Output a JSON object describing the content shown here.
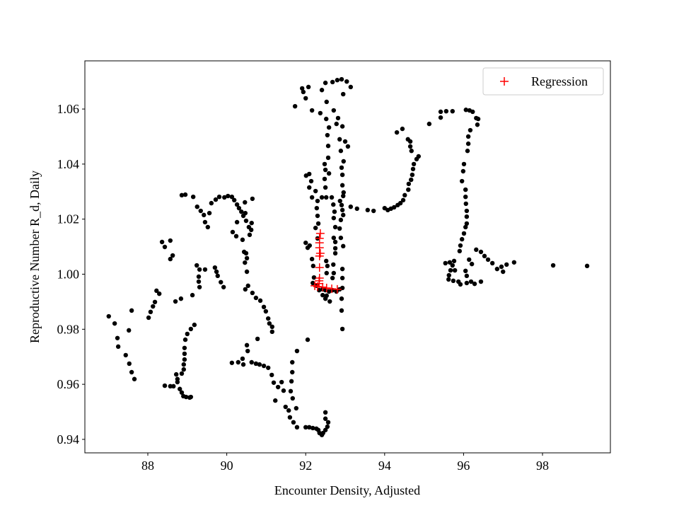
{
  "chart_data": {
    "type": "scatter",
    "x_label": "Encounter Density, Adjusted",
    "y_label": "Reproductive Number R_d, Daily",
    "xlim": [
      86.405,
      99.72
    ],
    "ylim": [
      0.9351,
      1.0775
    ],
    "xticks": [
      88,
      90,
      92,
      94,
      96,
      98
    ],
    "yticks": [
      0.94,
      0.96,
      0.98,
      {
        "value": 1,
        "label": "1.00"
      },
      1.02,
      1.04,
      1.06
    ],
    "grid": false,
    "legend": "upper right",
    "series": [
      {
        "color": "#000000",
        "marker": "o",
        "x": [
          87.01,
          87.16,
          87.23,
          87.25,
          87.44,
          87.53,
          87.59,
          87.66,
          87.52,
          87.59,
          88.02,
          88.07,
          88.13,
          88.18,
          88.22,
          88.29,
          88.36,
          88.43,
          88.57,
          88.63,
          88.57,
          88.7,
          88.84,
          89.24,
          89.31,
          89.29,
          89.29,
          89.31,
          89.45,
          89.7,
          89.74,
          89.77,
          89.85,
          89.92,
          89.13,
          88.86,
          88.95,
          89.15,
          89.25,
          89.34,
          89.42,
          89.45,
          89.52,
          89.56,
          89.61,
          89.72,
          89.81,
          89.94,
          90.03,
          90.13,
          90.19,
          90.26,
          90.31,
          90.37,
          90.42,
          90.46,
          90.65,
          90.47,
          90.49,
          90.56,
          90.63,
          90.62,
          90.58,
          90.24,
          90.15,
          90.26,
          90.4,
          90.44,
          90.49,
          90.51,
          90.46,
          90.51,
          90.54,
          90.47,
          90.65,
          90.74,
          90.85,
          90.94,
          90.99,
          91.05,
          91.08,
          91.15,
          91.15,
          89.18,
          89.09,
          89.0,
          88.95,
          88.93,
          88.93,
          88.93,
          88.91,
          88.91,
          88.86,
          88.75,
          88.72,
          88.75,
          88.65,
          88.57,
          88.43,
          88.81,
          88.86,
          88.9,
          88.97,
          89.06,
          89.09,
          90.13,
          90.29,
          90.42,
          90.4,
          90.51,
          90.53,
          90.63,
          90.74,
          90.83,
          90.94,
          91.05,
          91.14,
          91.19,
          91.23,
          91.3,
          91.39,
          91.44,
          91.49,
          91.57,
          91.6,
          91.69,
          91.78,
          90.78,
          91.78,
          92.05,
          91.66,
          91.66,
          91.64,
          91.62,
          91.67,
          91.76,
          92.0,
          92.09,
          92.18,
          92.27,
          92.32,
          92.35,
          92.41,
          92.44,
          92.5,
          92.55,
          92.57,
          92.5,
          92.5,
          92.01,
          92.09,
          92.09,
          92.14,
          92.16,
          92.25,
          92.25,
          92.3,
          92.32,
          92.3,
          92.28,
          92.3,
          92.41,
          92.52,
          92.66,
          92.7,
          92.73,
          92.71,
          92.75,
          92.86,
          92.71,
          92.75,
          92.75,
          92.75,
          92.87,
          92.95,
          92.96,
          92.93,
          92.93,
          92.91,
          92.96,
          92.89,
          92.86,
          92.78,
          92.82,
          92.71,
          92.53,
          92.41,
          92.5,
          92.68,
          92.8,
          92.91,
          93.04,
          93.14,
          92.95,
          92.93,
          93.0,
          93.07,
          92.59,
          92.57,
          92.57,
          92.55,
          92.59,
          92.52,
          92.37,
          92.16,
          92.0,
          91.94,
          91.91,
          92.07,
          91.73,
          92.48,
          92.5,
          92.48,
          92.5,
          92.91,
          92.93,
          92.95,
          92.89,
          92.89,
          92.95,
          92.93,
          92.93,
          92.93,
          92.91,
          92.91,
          92.93,
          92.52,
          92.55,
          92.53,
          92.7,
          92.71,
          92.68,
          92.0,
          92.05,
          92.1,
          92.16,
          92.19,
          92.21,
          92.18,
          92.28,
          92.34,
          92.43,
          92.5,
          92.59,
          92.68,
          92.78,
          92.86,
          92.5,
          92.61,
          92.53,
          92.43,
          93.14,
          93.3,
          93.57,
          93.72,
          94.0,
          94.08,
          94.16,
          94.24,
          94.33,
          94.4,
          94.47,
          94.51,
          94.6,
          94.61,
          94.67,
          94.7,
          94.72,
          94.74,
          94.81,
          94.86,
          94.68,
          94.65,
          94.65,
          94.59,
          94.45,
          94.31,
          95.13,
          95.42,
          95.42,
          95.56,
          95.72,
          96.06,
          96.15,
          96.23,
          96.32,
          96.37,
          96.35,
          96.17,
          96.12,
          96.12,
          96.1,
          96.01,
          95.99,
          95.96,
          96.05,
          96.05,
          96.06,
          96.08,
          96.08,
          96.08,
          96.05,
          96.01,
          95.96,
          95.92,
          95.9,
          95.76,
          95.72,
          95.67,
          95.63,
          95.62,
          95.74,
          95.87,
          95.92,
          96.08,
          96.19,
          96.28,
          96.44,
          96.21,
          96.14,
          96.32,
          96.44,
          96.53,
          96.62,
          96.73,
          96.85,
          96.96,
          97.0,
          97.09,
          97.28,
          98.27,
          99.13,
          95.54,
          95.65,
          95.78,
          96.08,
          96.05
        ],
        "y": [
          0.9847,
          0.9821,
          0.9768,
          0.9737,
          0.9706,
          0.9675,
          0.9644,
          0.9619,
          0.9796,
          0.9868,
          0.9842,
          0.9863,
          0.9883,
          0.9899,
          0.994,
          0.9929,
          1.0117,
          1.0099,
          1.0122,
          1.0068,
          1.0055,
          0.9901,
          0.9911,
          1.0032,
          1.0017,
          0.9991,
          0.9973,
          0.9953,
          1.0017,
          1.0024,
          1.0009,
          0.9994,
          0.9971,
          0.9953,
          0.9924,
          1.0287,
          1.0289,
          1.0281,
          1.0245,
          1.023,
          1.0215,
          1.0189,
          1.0171,
          1.0222,
          1.0258,
          1.0271,
          1.0281,
          1.0279,
          1.0284,
          1.0281,
          1.0269,
          1.0253,
          1.024,
          1.0227,
          1.0212,
          1.0261,
          1.0274,
          1.0222,
          1.0194,
          1.0171,
          1.0186,
          1.0161,
          1.0143,
          1.0138,
          1.0153,
          1.0189,
          1.0125,
          1.0081,
          1.0076,
          1.0058,
          1.0042,
          1.0009,
          0.9958,
          0.9945,
          0.9932,
          0.9914,
          0.9904,
          0.9881,
          0.9865,
          0.9839,
          0.9821,
          0.9809,
          0.9791,
          0.9816,
          0.9801,
          0.9783,
          0.9762,
          0.9732,
          0.9711,
          0.969,
          0.9672,
          0.9654,
          0.9639,
          0.9619,
          0.9636,
          0.9608,
          0.9593,
          0.9593,
          0.9595,
          0.9583,
          0.957,
          0.9557,
          0.9554,
          0.9552,
          0.9554,
          0.9678,
          0.968,
          0.9672,
          0.9693,
          0.9742,
          0.9721,
          0.968,
          0.9675,
          0.9672,
          0.9667,
          0.966,
          0.9634,
          0.9606,
          0.9541,
          0.959,
          0.9608,
          0.9577,
          0.9518,
          0.9505,
          0.948,
          0.9462,
          0.9444,
          0.9765,
          0.9721,
          0.9762,
          0.968,
          0.9644,
          0.9611,
          0.9575,
          0.9549,
          0.9513,
          0.9444,
          0.9444,
          0.9441,
          0.9439,
          0.9434,
          0.9423,
          0.9416,
          0.9423,
          0.9434,
          0.9446,
          0.9462,
          0.9475,
          0.9498,
          1.0358,
          1.0364,
          1.0315,
          1.0338,
          1.0279,
          1.0302,
          1.0168,
          1.013,
          1.0184,
          1.0212,
          1.024,
          1.0266,
          1.0279,
          1.0279,
          1.0279,
          1.0253,
          1.0227,
          1.0204,
          1.0171,
          1.0166,
          1.0132,
          1.0117,
          1.0094,
          1.0076,
          1.0266,
          1.0284,
          1.0297,
          1.0323,
          1.0361,
          1.0387,
          1.041,
          1.0448,
          1.049,
          1.0546,
          1.0567,
          1.0595,
          1.0626,
          1.0669,
          1.0695,
          1.0698,
          1.0705,
          1.0708,
          1.07,
          1.068,
          1.0654,
          1.0537,
          1.0482,
          1.0464,
          1.0366,
          1.0423,
          1.0466,
          1.0505,
          1.0533,
          1.0564,
          1.0585,
          1.0595,
          1.0639,
          1.0662,
          1.0675,
          1.068,
          1.061,
          1.04,
          1.0379,
          1.0346,
          1.0315,
          1.0251,
          1.0233,
          1.0215,
          1.0197,
          1.0132,
          1.0102,
          1.0019,
          0.9986,
          0.995,
          0.9911,
          0.9868,
          0.9801,
          1.0048,
          1.003,
          1.0004,
          1.0035,
          1.0004,
          0.9986,
          1.0114,
          1.0096,
          1.0104,
          1.0055,
          1.003,
          0.9988,
          0.9968,
          0.9958,
          0.9942,
          0.9945,
          0.9942,
          0.9937,
          0.9942,
          0.9937,
          0.9945,
          0.9911,
          0.9901,
          0.9922,
          0.9924,
          1.0245,
          1.0238,
          1.0233,
          1.023,
          1.024,
          1.0233,
          1.0238,
          1.0243,
          1.0251,
          1.0258,
          1.0269,
          1.0287,
          1.0307,
          1.0328,
          1.0343,
          1.0361,
          1.0382,
          1.04,
          1.0418,
          1.0428,
          1.0448,
          1.0464,
          1.0482,
          1.049,
          1.0528,
          1.0515,
          1.0546,
          1.059,
          1.0569,
          1.0592,
          1.0592,
          1.0597,
          1.0595,
          1.059,
          1.0567,
          1.0564,
          1.0543,
          1.0523,
          1.05,
          1.0474,
          1.0448,
          1.04,
          1.0374,
          1.0338,
          1.0307,
          1.0281,
          1.0256,
          1.023,
          1.0209,
          1.0184,
          1.0171,
          1.0148,
          1.0127,
          1.0104,
          1.0084,
          1.0048,
          1.0032,
          1.0014,
          0.9996,
          0.9981,
          0.9976,
          0.9973,
          0.9963,
          0.9968,
          0.9973,
          0.9965,
          0.9973,
          1.0037,
          1.0053,
          1.0089,
          1.0081,
          1.0066,
          1.0053,
          1.004,
          1.0019,
          1.0027,
          1.0009,
          1.0035,
          1.0043,
          1.0032,
          1.003,
          1.004,
          1.0043,
          1.0014,
          0.9994,
          1.0012
        ]
      },
      {
        "name": "Regression",
        "color": "#ff0000",
        "marker": "+",
        "x": [
          92.37,
          92.35,
          92.35,
          92.35,
          92.37,
          92.35,
          92.35,
          92.35,
          92.34,
          92.34,
          92.3,
          92.23,
          92.43,
          92.53,
          92.66,
          92.8
        ],
        "y": [
          1.0148,
          1.013,
          1.0114,
          1.0096,
          1.0076,
          1.0066,
          1.0024,
          0.9986,
          0.9976,
          0.9966,
          0.9955,
          0.9958,
          0.9953,
          0.995,
          0.9947,
          0.9945
        ]
      }
    ]
  }
}
